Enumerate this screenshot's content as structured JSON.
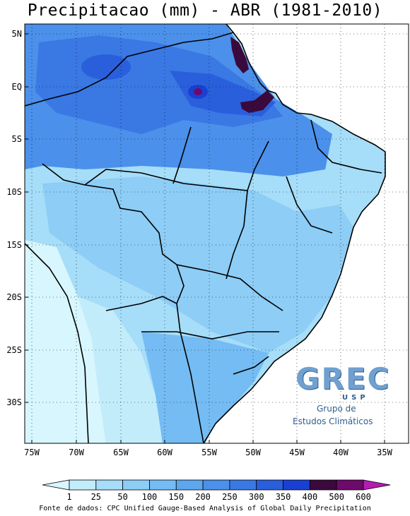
{
  "title": "Precipitacao (mm) - ABR (1981-2010)",
  "lat_labels": [
    "5N",
    "EQ",
    "5S",
    "10S",
    "15S",
    "20S",
    "25S",
    "30S"
  ],
  "lon_labels": [
    "75W",
    "70W",
    "65W",
    "60W",
    "55W",
    "50W",
    "45W",
    "40W",
    "35W"
  ],
  "colorbar": {
    "levels": [
      "1",
      "25",
      "50",
      "100",
      "150",
      "200",
      "250",
      "300",
      "350",
      "400",
      "500",
      "600"
    ],
    "colors": [
      "#d8f6fd",
      "#c3ecfb",
      "#a6ddf8",
      "#8dcdf6",
      "#74bcf3",
      "#5ea7ef",
      "#4b90ea",
      "#3a78e4",
      "#2a5fdc",
      "#1a40d2",
      "#3a0a3c",
      "#6d0a6b",
      "#b41cb4"
    ]
  },
  "logo": {
    "letters": "GREC",
    "usp": "USP",
    "line1": "Grupo de",
    "line2": "Estudos Climáticos"
  },
  "source": "Fonte de dados: CPC Unified Gauge-Based Analysis of Global Daily Precipitation"
}
